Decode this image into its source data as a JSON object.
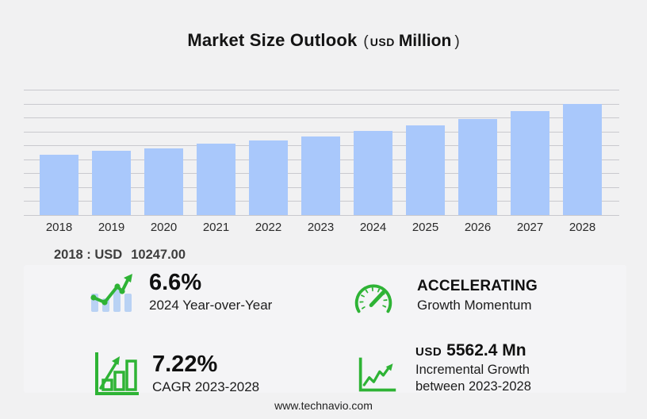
{
  "title": {
    "main": "Market Size Outlook",
    "unit_open_paren": "(",
    "unit_currency": "USD",
    "unit_word": "Million",
    "unit_close_paren": ")"
  },
  "chart_data": {
    "type": "bar",
    "title": "Market Size Outlook (USD Million)",
    "categories": [
      "2018",
      "2019",
      "2020",
      "2021",
      "2022",
      "2023",
      "2024",
      "2025",
      "2026",
      "2027",
      "2028"
    ],
    "values": [
      10247,
      10950,
      11270,
      12130,
      12670,
      13347,
      14228,
      15270,
      16350,
      17600,
      18909
    ],
    "unit": "USD Million",
    "xlabel": "",
    "ylabel": "",
    "ylim": [
      0,
      21280
    ],
    "gridlines": 10,
    "grid": true,
    "legend": "none",
    "bar_color": "#a9c8fb"
  },
  "annotation": {
    "label": "2018 : USD",
    "value": "10247.00"
  },
  "stats": {
    "yoy": {
      "icon": "bar-chart-trend-icon",
      "value": "6.6%",
      "label": "2024 Year-over-Year"
    },
    "momentum": {
      "icon": "speedometer-icon",
      "value": "ACCELERATING",
      "label": "Growth Momentum"
    },
    "cagr": {
      "icon": "growth-bars-arrow-icon",
      "value": "7.22%",
      "label": "CAGR 2023-2028"
    },
    "incremental": {
      "icon": "line-growth-arrow-icon",
      "currency": "USD",
      "value": "5562.4 Mn",
      "label_line1": "Incremental Growth",
      "label_line2": "between 2023-2028"
    }
  },
  "footer": {
    "url": "www.technavio.com"
  },
  "colors": {
    "bar_blue": "#a9c8fb",
    "icon_blue": "#b9d2f4",
    "icon_green": "#2eb335",
    "background": "#f1f1f2",
    "panel": "#f4f4f6",
    "gridline": "#c9c9ce"
  }
}
